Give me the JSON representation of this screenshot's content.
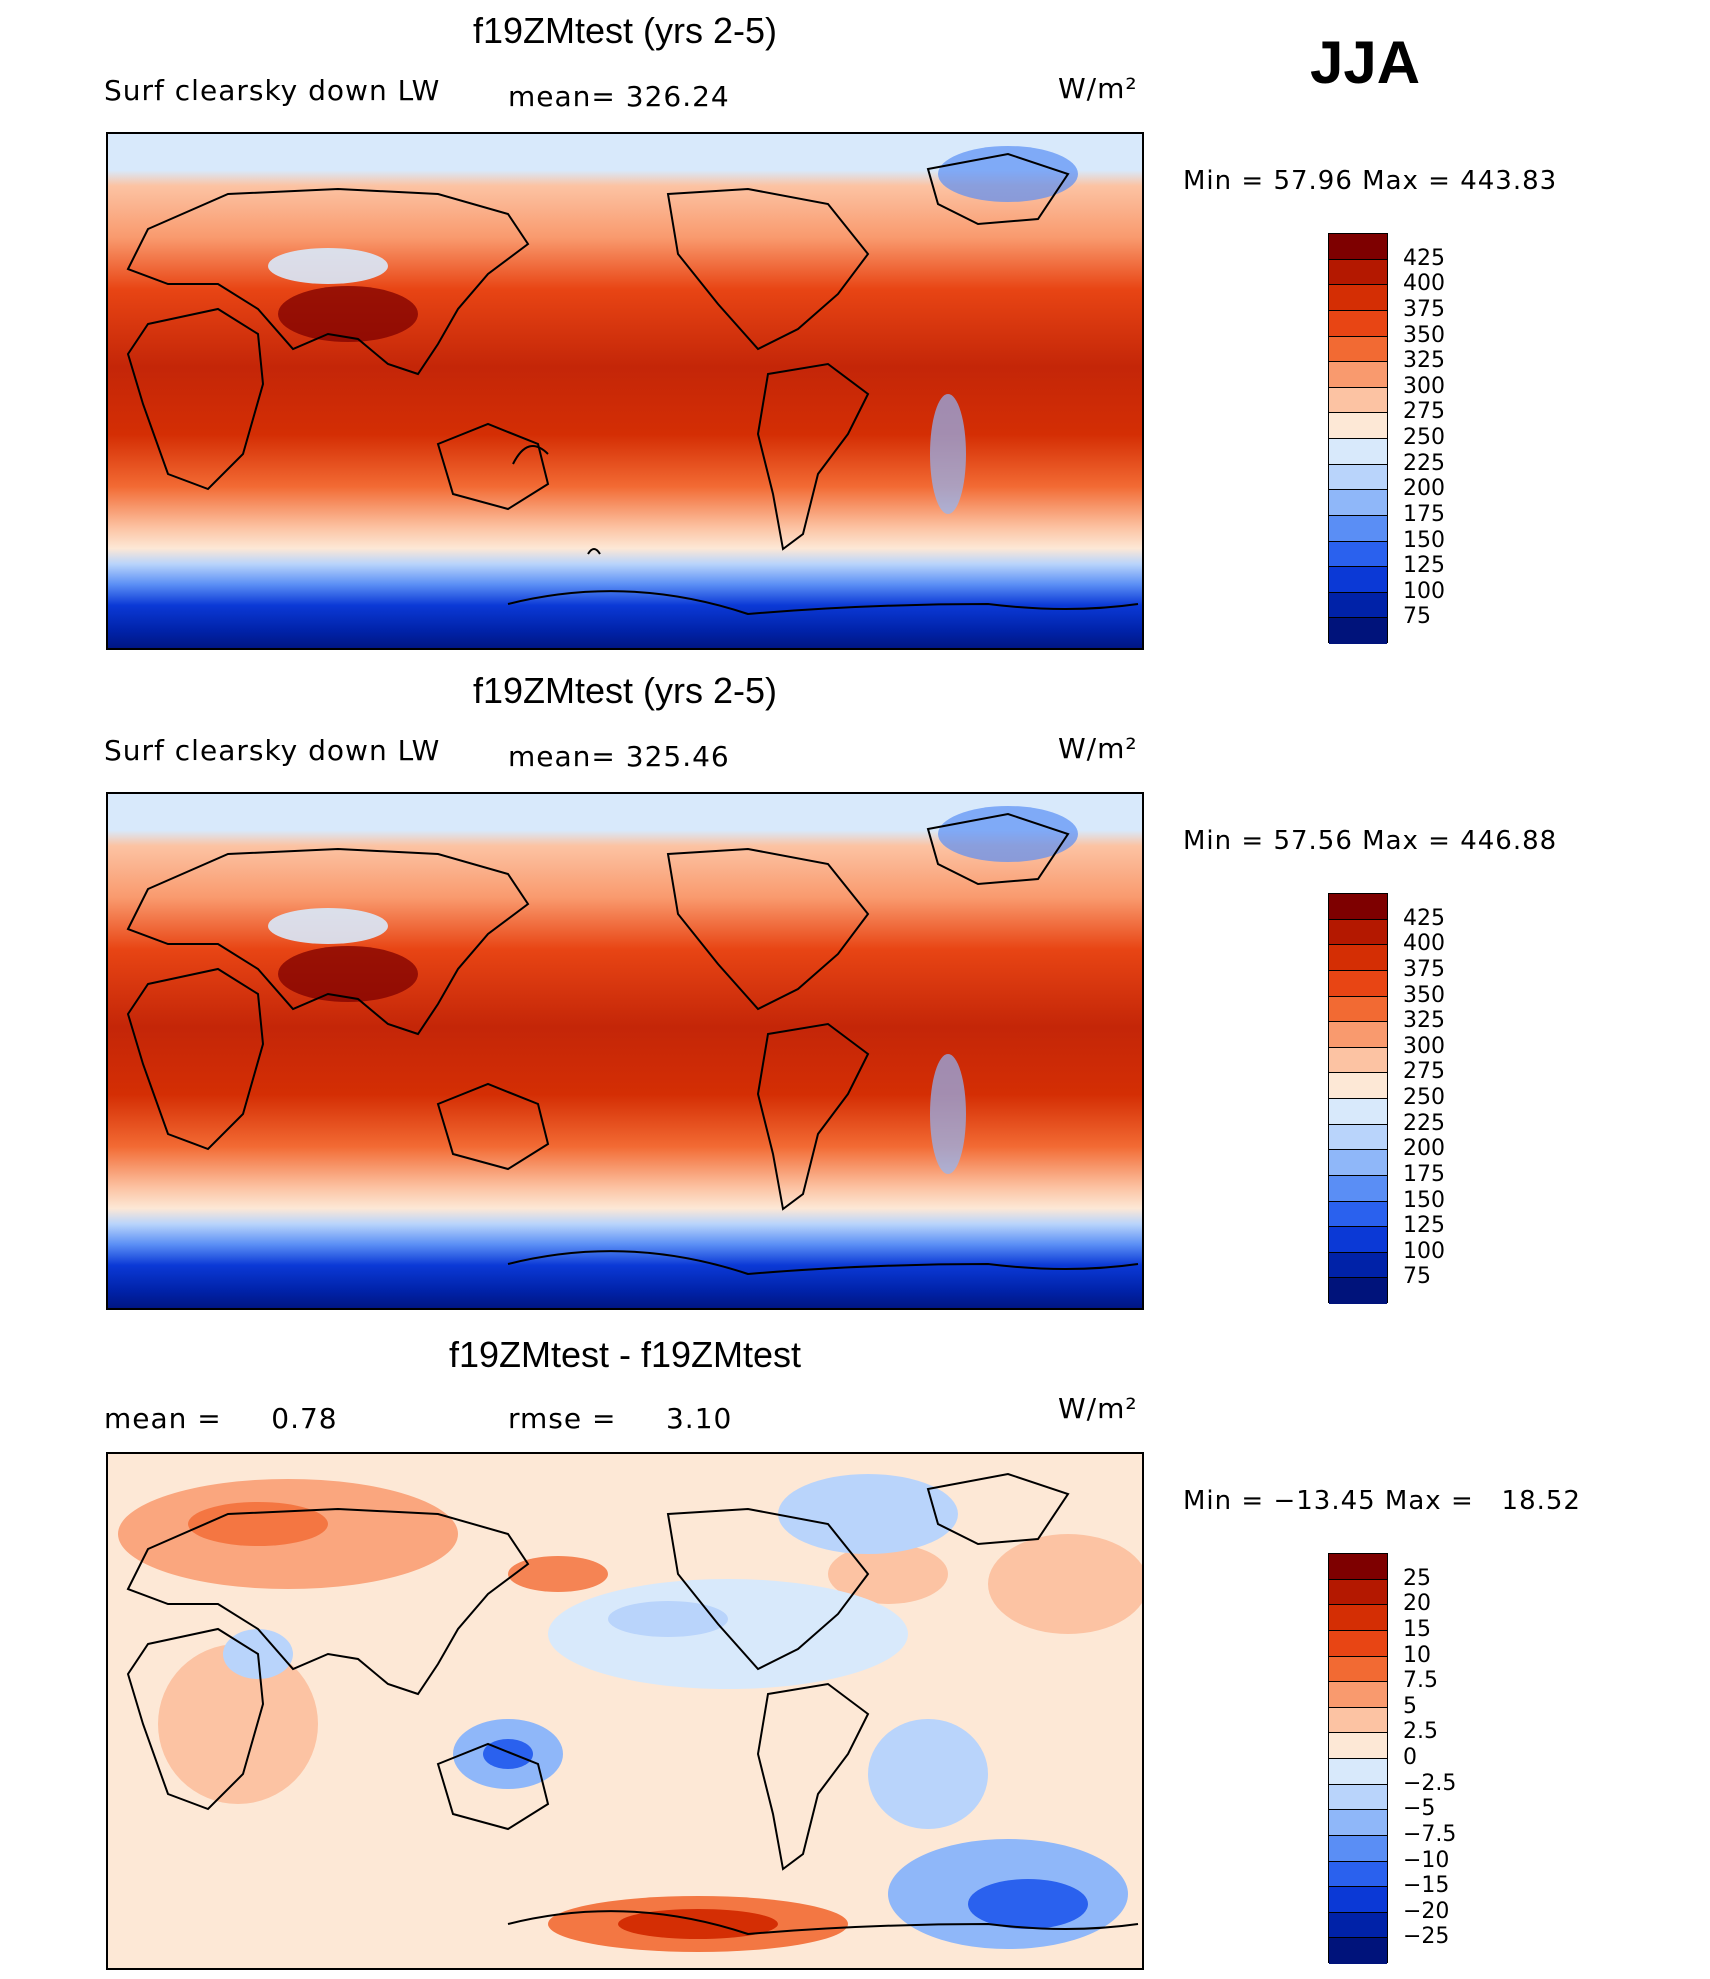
{
  "season": "JJA",
  "panels": [
    {
      "title": "f19ZMtest (yrs 2-5)",
      "left_label": "Surf clearsky down LW",
      "mid_label": "mean= 326.24",
      "units": "W/m²",
      "minmax": "Min =   57.96 Max = 443.83",
      "colorbar": {
        "ticks": [
          "425",
          "400",
          "375",
          "350",
          "325",
          "300",
          "275",
          "250",
          "225",
          "200",
          "175",
          "150",
          "125",
          "100",
          "75"
        ],
        "colors": [
          "#7e0000",
          "#b41800",
          "#d42e04",
          "#e84514",
          "#f26a33",
          "#f99a6e",
          "#fcc3a3",
          "#fde8d6",
          "#d8e9fb",
          "#b9d4fb",
          "#8fb7f9",
          "#5a8ef5",
          "#2a61ee",
          "#0b39d6",
          "#0022a8",
          "#00137b"
        ]
      }
    },
    {
      "title": "f19ZMtest (yrs 2-5)",
      "left_label": "Surf clearsky down LW",
      "mid_label": "mean= 325.46",
      "units": "W/m²",
      "minmax": "Min =   57.56 Max = 446.88",
      "colorbar": {
        "ticks": [
          "425",
          "400",
          "375",
          "350",
          "325",
          "300",
          "275",
          "250",
          "225",
          "200",
          "175",
          "150",
          "125",
          "100",
          "75"
        ],
        "colors": [
          "#7e0000",
          "#b41800",
          "#d42e04",
          "#e84514",
          "#f26a33",
          "#f99a6e",
          "#fcc3a3",
          "#fde8d6",
          "#d8e9fb",
          "#b9d4fb",
          "#8fb7f9",
          "#5a8ef5",
          "#2a61ee",
          "#0b39d6",
          "#0022a8",
          "#00137b"
        ]
      }
    },
    {
      "title": "f19ZMtest - f19ZMtest",
      "left_label": "mean =     0.78",
      "mid_label": "rmse =     3.10",
      "units": "W/m²",
      "minmax": "Min = −13.45 Max =   18.52",
      "colorbar": {
        "ticks": [
          "25",
          "20",
          "15",
          "10",
          "7.5",
          "5",
          "2.5",
          "0",
          "−2.5",
          "−5",
          "−7.5",
          "−10",
          "−15",
          "−20",
          "−25"
        ],
        "colors": [
          "#7e0000",
          "#b41800",
          "#d42e04",
          "#e84514",
          "#f26a33",
          "#f99a6e",
          "#fcc3a3",
          "#fde8d6",
          "#d8e9fb",
          "#b9d4fb",
          "#8fb7f9",
          "#5a8ef5",
          "#2a61ee",
          "#0b39d6",
          "#0022a8",
          "#00137b"
        ]
      }
    }
  ]
}
